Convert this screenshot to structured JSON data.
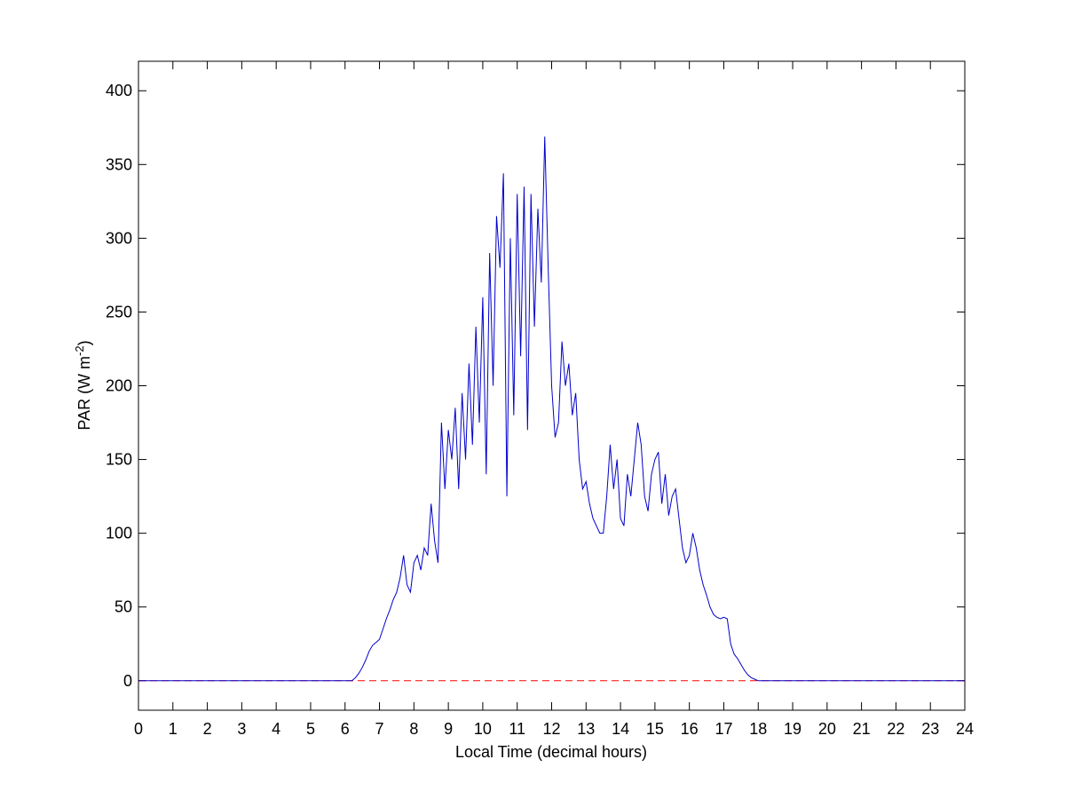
{
  "chart_data": {
    "type": "line",
    "xlabel": "Local Time (decimal hours)",
    "ylabel": "PAR (W m",
    "ylabel_superscript": "-2",
    "ylabel_end": ")",
    "xlim": [
      0,
      24
    ],
    "ylim": [
      -20,
      420
    ],
    "xticks": [
      0,
      1,
      2,
      3,
      4,
      5,
      6,
      7,
      8,
      9,
      10,
      11,
      12,
      13,
      14,
      15,
      16,
      17,
      18,
      19,
      20,
      21,
      22,
      23,
      24
    ],
    "yticks": [
      0,
      50,
      100,
      150,
      200,
      250,
      300,
      350,
      400
    ],
    "grid": false,
    "series": [
      {
        "color": "#0000cc",
        "dash": "solid",
        "x": [
          0,
          6.0,
          6.1,
          6.2,
          6.3,
          6.4,
          6.5,
          6.6,
          6.7,
          6.8,
          6.9,
          7.0,
          7.1,
          7.2,
          7.3,
          7.4,
          7.5,
          7.6,
          7.7,
          7.8,
          7.9,
          8.0,
          8.1,
          8.2,
          8.3,
          8.4,
          8.5,
          8.6,
          8.7,
          8.8,
          8.9,
          9.0,
          9.1,
          9.2,
          9.3,
          9.4,
          9.5,
          9.6,
          9.7,
          9.8,
          9.9,
          10.0,
          10.1,
          10.2,
          10.3,
          10.4,
          10.5,
          10.6,
          10.7,
          10.8,
          10.9,
          11.0,
          11.1,
          11.2,
          11.3,
          11.4,
          11.5,
          11.6,
          11.7,
          11.8,
          11.9,
          12.0,
          12.1,
          12.2,
          12.3,
          12.4,
          12.5,
          12.6,
          12.7,
          12.8,
          12.9,
          13.0,
          13.1,
          13.2,
          13.3,
          13.4,
          13.5,
          13.6,
          13.7,
          13.8,
          13.9,
          14.0,
          14.1,
          14.2,
          14.3,
          14.4,
          14.5,
          14.6,
          14.7,
          14.8,
          14.9,
          15.0,
          15.1,
          15.2,
          15.3,
          15.4,
          15.5,
          15.6,
          15.7,
          15.8,
          15.9,
          16.0,
          16.1,
          16.2,
          16.3,
          16.4,
          16.5,
          16.6,
          16.7,
          16.8,
          16.9,
          17.0,
          17.1,
          17.2,
          17.3,
          17.4,
          17.5,
          17.6,
          17.7,
          17.8,
          17.9,
          18.0,
          24
        ],
        "values": [
          0,
          0,
          0,
          0,
          2,
          5,
          9,
          14,
          20,
          24,
          26,
          28,
          35,
          42,
          48,
          55,
          60,
          70,
          85,
          65,
          60,
          80,
          85,
          75,
          90,
          85,
          120,
          95,
          80,
          175,
          130,
          170,
          150,
          185,
          130,
          195,
          150,
          215,
          160,
          240,
          175,
          260,
          140,
          290,
          200,
          315,
          280,
          344,
          125,
          300,
          180,
          330,
          220,
          335,
          170,
          330,
          240,
          320,
          270,
          369,
          280,
          200,
          165,
          175,
          230,
          200,
          215,
          180,
          195,
          150,
          130,
          135,
          120,
          110,
          105,
          100,
          100,
          125,
          160,
          130,
          150,
          110,
          105,
          140,
          125,
          150,
          175,
          160,
          125,
          115,
          140,
          150,
          155,
          120,
          140,
          112,
          125,
          130,
          110,
          90,
          80,
          85,
          100,
          90,
          75,
          65,
          58,
          50,
          45,
          43,
          42,
          43,
          42,
          25,
          18,
          15,
          11,
          7,
          4,
          2,
          1,
          0,
          0
        ]
      },
      {
        "color": "#ff0000",
        "dash": "dashed",
        "x": [
          0,
          24
        ],
        "values": [
          0,
          0
        ]
      }
    ]
  }
}
